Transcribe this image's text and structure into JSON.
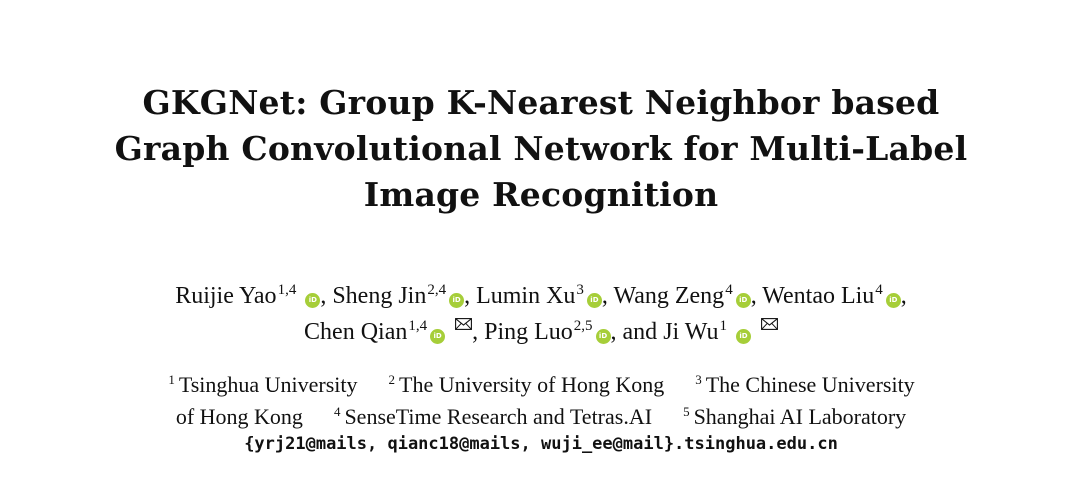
{
  "paper": {
    "title_lines": [
      "GKGNet: Group K-Nearest Neighbor based",
      "Graph Convolutional Network for Multi-Label",
      "Image Recognition"
    ],
    "authors": [
      {
        "name": "Ruijie Yao",
        "aff": "1,4",
        "sep": ", "
      },
      {
        "name": "Sheng Jin",
        "aff": "2,4",
        "sep": ", "
      },
      {
        "name": "Lumin Xu",
        "aff": "3",
        "sep": ", "
      },
      {
        "name": "Wang Zeng",
        "aff": "4",
        "sep": ", "
      },
      {
        "name": "Wentao Liu",
        "aff": "4",
        "sep": ","
      },
      {
        "name": "Chen Qian",
        "aff": "1,4",
        "sep": ", "
      },
      {
        "name": "Ping Luo",
        "aff": "2,5",
        "sep": ", and "
      },
      {
        "name": "Ji Wu",
        "aff": "1",
        "sep": ""
      }
    ],
    "orcid_label": "iD",
    "affiliations": [
      {
        "num": "1",
        "name": "Tsinghua University"
      },
      {
        "num": "2",
        "name": "The University of Hong Kong"
      },
      {
        "num": "3",
        "name": "The Chinese University"
      },
      {
        "num": "3b",
        "name": "of Hong Kong"
      },
      {
        "num": "4",
        "name": "SenseTime Research and Tetras.AI"
      },
      {
        "num": "5",
        "name": "Shanghai AI Laboratory"
      }
    ],
    "emails": "{yrj21@mails, qianc18@mails, wuji_ee@mail}.tsinghua.edu.cn"
  },
  "colors": {
    "orcid": "#a6ce39",
    "text": "#111111"
  },
  "icons": {
    "orcid": "orcid-icon",
    "mail": "envelope-icon"
  }
}
